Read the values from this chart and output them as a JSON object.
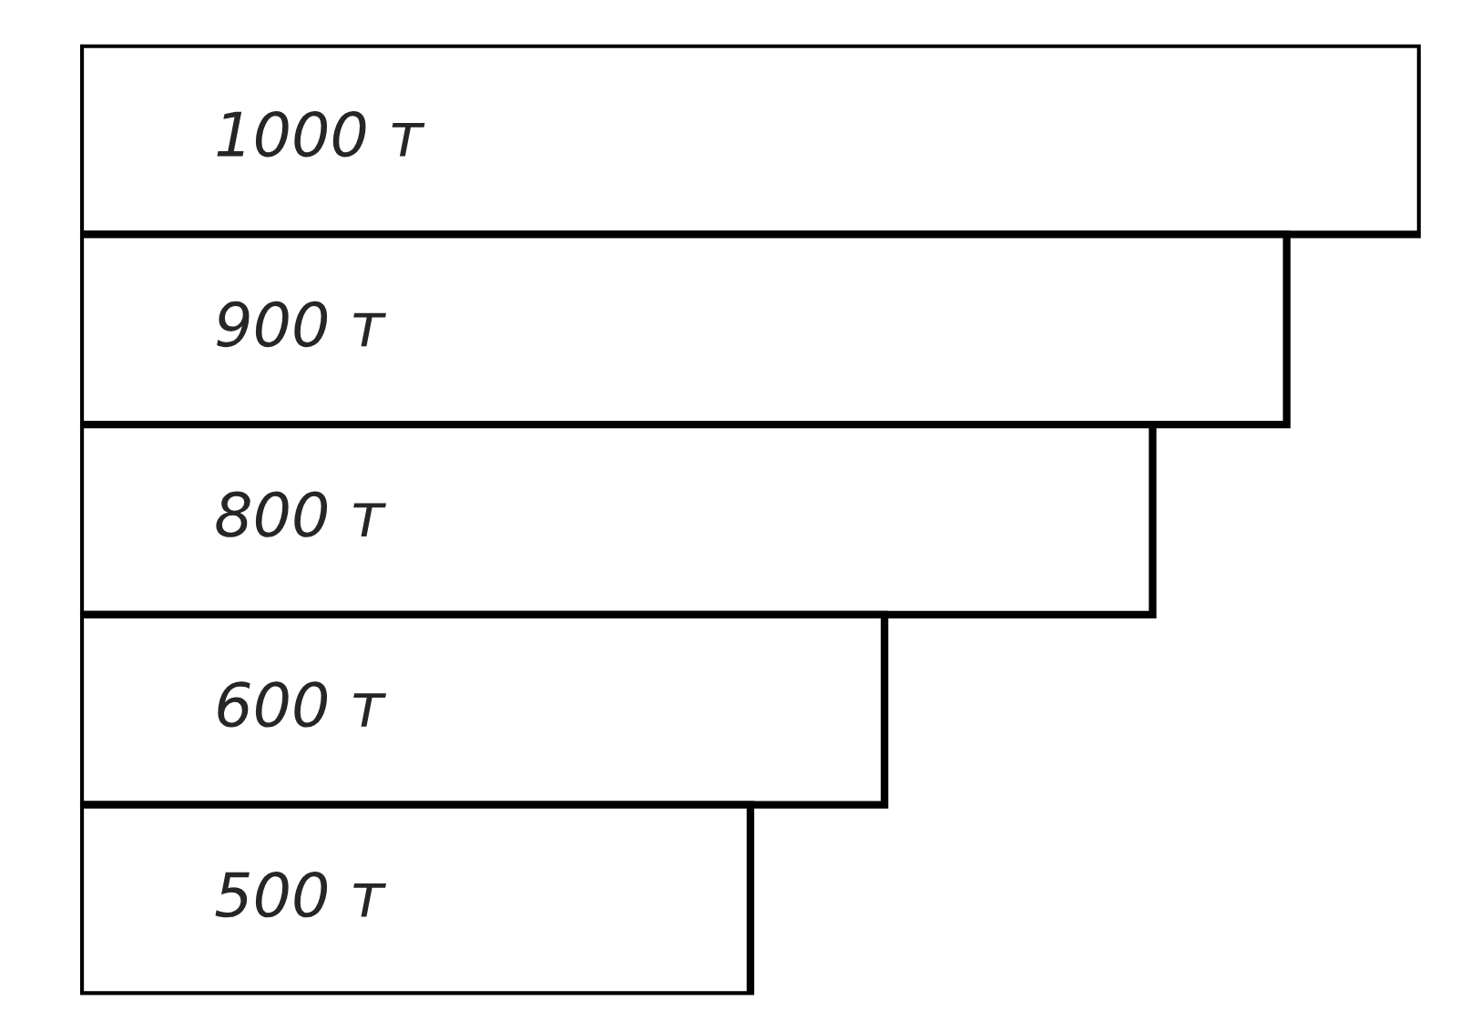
{
  "chart_data": {
    "type": "bar",
    "orientation": "horizontal",
    "categories": [
      null,
      null,
      null,
      null,
      null
    ],
    "values": [
      1000,
      900,
      800,
      600,
      500
    ],
    "value_labels": [
      "1000 т",
      "900 т",
      "800 т",
      "600 т",
      "500 т"
    ],
    "color": "#ffffff",
    "tick_labels": false,
    "grid": false,
    "legend": false
  }
}
